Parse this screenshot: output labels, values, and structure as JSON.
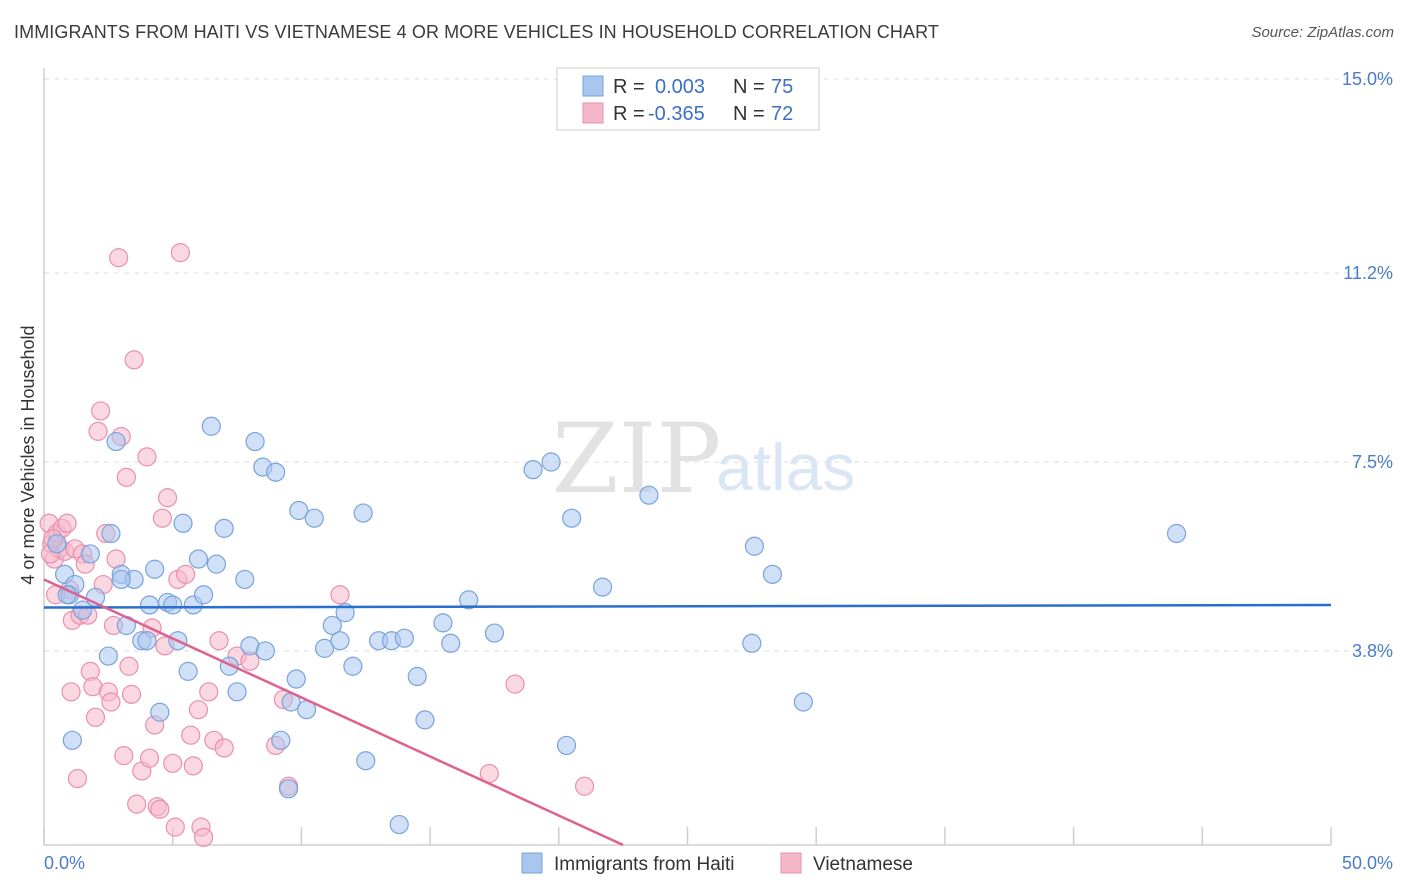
{
  "title": "IMMIGRANTS FROM HAITI VS VIETNAMESE 4 OR MORE VEHICLES IN HOUSEHOLD CORRELATION CHART",
  "source": "Source: ZipAtlas.com",
  "watermark": {
    "zip": "ZIP",
    "atlas": "atlas"
  },
  "colors": {
    "haiti_fill": "#a9c6ee",
    "haiti_stroke": "#7aa3dc",
    "haiti_line": "#2a6fd0",
    "viet_fill": "#f5b8cb",
    "viet_stroke": "#ea8fae",
    "viet_line": "#e0608f",
    "tick": "#4a7cc9",
    "grid": "#dddddd"
  },
  "legend": {
    "r_label": "R =",
    "n_label": "N =",
    "haiti_r": "0.003",
    "haiti_n": "75",
    "viet_r": "-0.365",
    "viet_n": "72"
  },
  "chart_data": {
    "type": "scatter",
    "title": "IMMIGRANTS FROM HAITI VS VIETNAMESE 4 OR MORE VEHICLES IN HOUSEHOLD CORRELATION CHART",
    "xlabel": "",
    "ylabel": "4 or more Vehicles in Household",
    "xlim": [
      0,
      50
    ],
    "ylim": [
      0,
      15
    ],
    "x_tick_labels": {
      "min": "0.0%",
      "max": "50.0%"
    },
    "y_ticks": [
      {
        "value": 3.8,
        "label": "3.8%"
      },
      {
        "value": 7.5,
        "label": "7.5%"
      },
      {
        "value": 11.2,
        "label": "11.2%"
      },
      {
        "value": 15.0,
        "label": "15.0%"
      }
    ],
    "series": [
      {
        "name": "Immigrants from Haiti",
        "r": 0.003,
        "n": 75,
        "trend": {
          "x0": 0,
          "y0": 4.65,
          "x1": 50,
          "y1": 4.7
        },
        "points": [
          [
            0.8,
            5.3
          ],
          [
            1.0,
            4.9
          ],
          [
            1.2,
            5.1
          ],
          [
            1.5,
            4.6
          ],
          [
            1.8,
            5.7
          ],
          [
            2.0,
            4.85
          ],
          [
            2.5,
            3.7
          ],
          [
            2.6,
            6.1
          ],
          [
            2.8,
            7.9
          ],
          [
            3.0,
            5.3
          ],
          [
            3.5,
            5.2
          ],
          [
            3.2,
            4.3
          ],
          [
            3.8,
            4.0
          ],
          [
            4.1,
            4.7
          ],
          [
            4.3,
            5.4
          ],
          [
            4.5,
            2.6
          ],
          [
            4.8,
            4.75
          ],
          [
            5.0,
            4.7
          ],
          [
            5.2,
            4.0
          ],
          [
            5.4,
            6.3
          ],
          [
            5.6,
            3.4
          ],
          [
            5.8,
            4.7
          ],
          [
            6.0,
            5.6
          ],
          [
            6.2,
            4.9
          ],
          [
            6.5,
            8.2
          ],
          [
            7.0,
            6.2
          ],
          [
            7.2,
            3.5
          ],
          [
            7.5,
            3.0
          ],
          [
            7.8,
            5.2
          ],
          [
            8.0,
            3.9
          ],
          [
            8.2,
            7.9
          ],
          [
            8.5,
            7.4
          ],
          [
            8.6,
            3.8
          ],
          [
            9.0,
            7.3
          ],
          [
            9.2,
            2.05
          ],
          [
            9.6,
            2.8
          ],
          [
            9.8,
            3.25
          ],
          [
            10.2,
            2.65
          ],
          [
            9.9,
            6.55
          ],
          [
            10.5,
            6.4
          ],
          [
            10.9,
            3.85
          ],
          [
            11.2,
            4.3
          ],
          [
            11.5,
            4.0
          ],
          [
            11.7,
            4.55
          ],
          [
            12.0,
            3.5
          ],
          [
            12.5,
            1.65
          ],
          [
            13.0,
            4.0
          ],
          [
            13.5,
            4.0
          ],
          [
            13.8,
            0.4
          ],
          [
            14.0,
            4.05
          ],
          [
            14.5,
            3.3
          ],
          [
            14.8,
            2.45
          ],
          [
            15.5,
            4.35
          ],
          [
            15.8,
            3.95
          ],
          [
            16.5,
            4.8
          ],
          [
            17.5,
            4.15
          ],
          [
            19.0,
            7.35
          ],
          [
            19.7,
            7.5
          ],
          [
            20.3,
            1.95
          ],
          [
            20.5,
            6.4
          ],
          [
            21.7,
            5.05
          ],
          [
            23.5,
            6.85
          ],
          [
            27.5,
            3.95
          ],
          [
            27.6,
            5.85
          ],
          [
            28.3,
            5.3
          ],
          [
            29.5,
            2.8
          ],
          [
            44.0,
            6.1
          ],
          [
            3.0,
            5.2
          ],
          [
            1.1,
            2.05
          ],
          [
            0.5,
            5.9
          ],
          [
            0.9,
            4.9
          ],
          [
            4.0,
            4.0
          ],
          [
            6.7,
            5.5
          ],
          [
            12.4,
            6.5
          ],
          [
            9.5,
            1.1
          ]
        ]
      },
      {
        "name": "Vietnamese",
        "r": -0.365,
        "n": 72,
        "trend": {
          "x0": 0,
          "y0": 5.2,
          "x1": 22.5,
          "y1": 0
        },
        "points": [
          [
            0.2,
            6.3
          ],
          [
            0.3,
            5.9
          ],
          [
            0.4,
            5.6
          ],
          [
            0.5,
            6.1
          ],
          [
            0.6,
            5.8
          ],
          [
            0.7,
            6.2
          ],
          [
            0.8,
            5.75
          ],
          [
            0.9,
            6.3
          ],
          [
            1.0,
            5.0
          ],
          [
            1.1,
            4.4
          ],
          [
            1.2,
            5.8
          ],
          [
            1.3,
            1.3
          ],
          [
            1.4,
            4.5
          ],
          [
            1.5,
            5.7
          ],
          [
            1.6,
            5.5
          ],
          [
            1.7,
            4.5
          ],
          [
            1.8,
            3.4
          ],
          [
            1.9,
            3.1
          ],
          [
            2.0,
            2.5
          ],
          [
            2.1,
            8.1
          ],
          [
            2.2,
            8.5
          ],
          [
            2.3,
            5.1
          ],
          [
            2.4,
            6.1
          ],
          [
            2.5,
            3.0
          ],
          [
            2.6,
            2.8
          ],
          [
            2.8,
            5.6
          ],
          [
            2.9,
            11.5
          ],
          [
            3.0,
            8.0
          ],
          [
            3.1,
            1.75
          ],
          [
            3.2,
            7.2
          ],
          [
            3.3,
            3.5
          ],
          [
            3.4,
            2.95
          ],
          [
            3.5,
            9.5
          ],
          [
            3.6,
            0.8
          ],
          [
            3.8,
            1.45
          ],
          [
            4.0,
            7.6
          ],
          [
            4.1,
            1.7
          ],
          [
            4.2,
            4.25
          ],
          [
            4.3,
            2.35
          ],
          [
            4.4,
            0.75
          ],
          [
            4.5,
            0.7
          ],
          [
            4.6,
            6.4
          ],
          [
            4.7,
            3.9
          ],
          [
            4.8,
            6.8
          ],
          [
            5.0,
            1.6
          ],
          [
            5.1,
            0.35
          ],
          [
            5.2,
            5.2
          ],
          [
            5.3,
            11.6
          ],
          [
            5.5,
            5.3
          ],
          [
            5.7,
            2.15
          ],
          [
            5.8,
            1.55
          ],
          [
            6.0,
            2.65
          ],
          [
            6.1,
            0.35
          ],
          [
            6.2,
            0.15
          ],
          [
            6.4,
            3.0
          ],
          [
            6.6,
            2.05
          ],
          [
            6.8,
            4.0
          ],
          [
            7.0,
            1.9
          ],
          [
            7.5,
            3.7
          ],
          [
            8.0,
            3.6
          ],
          [
            9.0,
            1.95
          ],
          [
            9.3,
            2.85
          ],
          [
            9.5,
            1.15
          ],
          [
            11.5,
            4.9
          ],
          [
            17.3,
            1.4
          ],
          [
            18.3,
            3.15
          ],
          [
            21.0,
            1.15
          ],
          [
            0.25,
            5.7
          ],
          [
            0.35,
            6.0
          ],
          [
            0.45,
            4.9
          ],
          [
            1.05,
            3.0
          ],
          [
            2.7,
            4.3
          ]
        ]
      }
    ]
  },
  "bottom_legend": [
    {
      "label": "Immigrants from Haiti"
    },
    {
      "label": "Vietnamese"
    }
  ]
}
